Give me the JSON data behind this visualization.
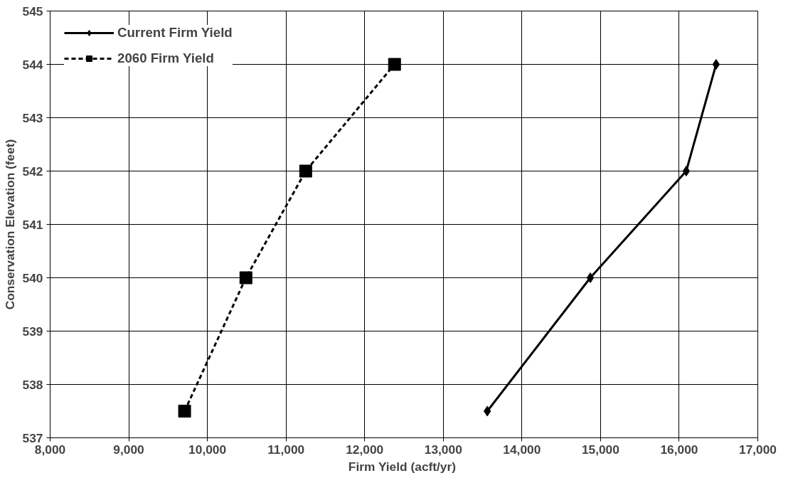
{
  "chart_data": {
    "type": "line",
    "xlabel": "Firm Yield  (acft/yr)",
    "ylabel": "Conservation Elevation (feet)",
    "xlim": [
      8000,
      17000
    ],
    "xticks": [
      {
        "value": 8000,
        "label": "8,000"
      },
      {
        "value": 9000,
        "label": "9,000"
      },
      {
        "value": 10000,
        "label": "10,000"
      },
      {
        "value": 11000,
        "label": "11,000"
      },
      {
        "value": 12000,
        "label": "12,000"
      },
      {
        "value": 13000,
        "label": "13,000"
      },
      {
        "value": 14000,
        "label": "14,000"
      },
      {
        "value": 15000,
        "label": "15,000"
      },
      {
        "value": 16000,
        "label": "16,000"
      },
      {
        "value": 17000,
        "label": "17,000"
      }
    ],
    "ylim": [
      537,
      545
    ],
    "yticks": [
      537,
      538,
      539,
      540,
      541,
      542,
      543,
      544,
      545
    ],
    "grid": true,
    "legend": "top left",
    "series": [
      {
        "name": "Current Firm Yield",
        "color": "#000000",
        "marker": "diamond",
        "line_style": "solid",
        "x": [
          13560,
          14870,
          16090,
          16470
        ],
        "values": [
          537.5,
          540,
          542,
          544
        ]
      },
      {
        "name": "2060 Firm Yield",
        "color": "#000000",
        "marker": "square",
        "line_style": "dashed",
        "x": [
          9710,
          10490,
          11250,
          12380
        ],
        "values": [
          537.5,
          540,
          542,
          544
        ]
      }
    ]
  }
}
